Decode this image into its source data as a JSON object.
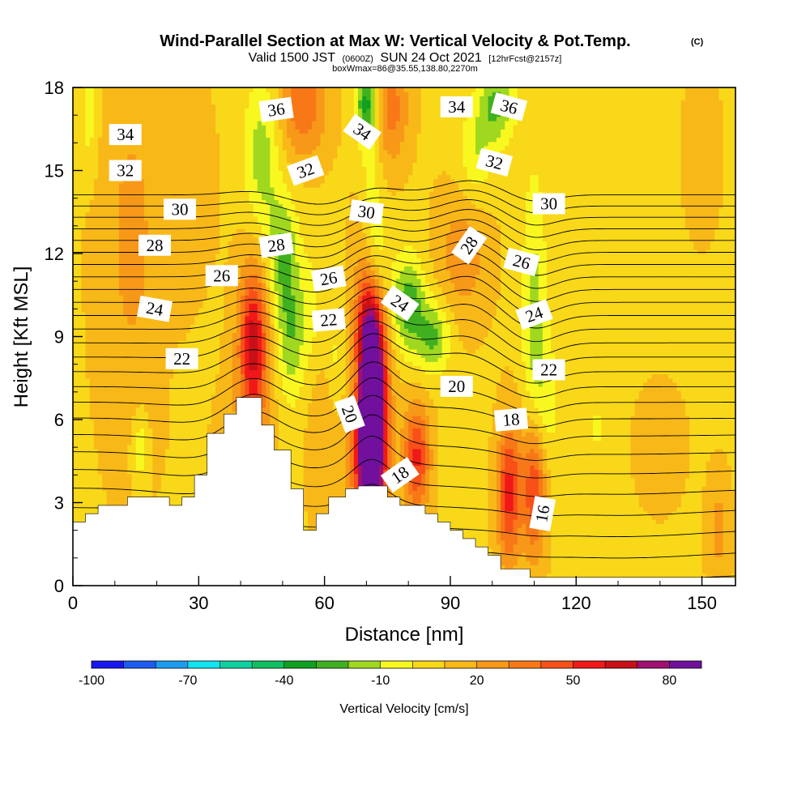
{
  "chart_data": {
    "type": "heatmap",
    "title": "Wind-Parallel Section at Max W: Vertical Velocity & Pot.Temp.",
    "title_mark": "(C)",
    "subtitle_parts": [
      "Valid 1500 JST",
      "(0600Z)",
      "SUN 24 Oct 2021",
      "[12hrFcst@2157z]"
    ],
    "subtitle2": "boxWmax=86@35.55,138.80,2270m",
    "xlabel": "Distance [nm]",
    "ylabel": "Height [Kft MSL]",
    "xlim": [
      0,
      158
    ],
    "ylim": [
      0,
      18
    ],
    "x_ticks": [
      "0",
      "30",
      "60",
      "90",
      "120",
      "150"
    ],
    "x_tick_values": [
      0,
      30,
      60,
      90,
      120,
      150
    ],
    "y_ticks": [
      "0",
      "3",
      "6",
      "9",
      "12",
      "15",
      "18"
    ],
    "y_tick_values": [
      0,
      3,
      6,
      9,
      12,
      15,
      18
    ],
    "colorbar": {
      "label": "Vertical Velocity [cm/s]",
      "range": [
        -100,
        90
      ],
      "tick_labels": [
        "-100",
        "-70",
        "-40",
        "-10",
        "20",
        "50",
        "80"
      ],
      "tick_values": [
        -100,
        -70,
        -40,
        -10,
        20,
        50,
        80
      ],
      "colors": [
        "#1818f0",
        "#1c5cf0",
        "#1c9cf0",
        "#10e4f0",
        "#10d0a0",
        "#10c060",
        "#10a020",
        "#40b020",
        "#a0d820",
        "#f8f820",
        "#f8d818",
        "#f8b818",
        "#f89818",
        "#f87818",
        "#f85018",
        "#f01818",
        "#c81018",
        "#a01070",
        "#70109c"
      ]
    },
    "terrain": [
      [
        0,
        2.3
      ],
      [
        3,
        2.3
      ],
      [
        3,
        2.6
      ],
      [
        6,
        2.6
      ],
      [
        6,
        2.9
      ],
      [
        13,
        2.9
      ],
      [
        13,
        3.2
      ],
      [
        23,
        3.2
      ],
      [
        23,
        2.9
      ],
      [
        26,
        2.9
      ],
      [
        26,
        3.2
      ],
      [
        29,
        3.2
      ],
      [
        29,
        4.0
      ],
      [
        32,
        4.0
      ],
      [
        32,
        5.5
      ],
      [
        36,
        5.5
      ],
      [
        36,
        6.2
      ],
      [
        39,
        6.2
      ],
      [
        39,
        6.8
      ],
      [
        45,
        6.8
      ],
      [
        45,
        5.8
      ],
      [
        48,
        5.8
      ],
      [
        48,
        4.9
      ],
      [
        52,
        4.9
      ],
      [
        52,
        3.5
      ],
      [
        55,
        3.5
      ],
      [
        55,
        2.0
      ],
      [
        58,
        2.0
      ],
      [
        58,
        2.6
      ],
      [
        61,
        2.6
      ],
      [
        61,
        3.2
      ],
      [
        65,
        3.2
      ],
      [
        65,
        3.5
      ],
      [
        68,
        3.5
      ],
      [
        68,
        3.6
      ],
      [
        75,
        3.6
      ],
      [
        75,
        3.2
      ],
      [
        78,
        3.2
      ],
      [
        78,
        2.9
      ],
      [
        84,
        2.9
      ],
      [
        84,
        2.6
      ],
      [
        87,
        2.6
      ],
      [
        87,
        2.3
      ],
      [
        90,
        2.3
      ],
      [
        90,
        2.0
      ],
      [
        93,
        2.0
      ],
      [
        93,
        1.7
      ],
      [
        96,
        1.7
      ],
      [
        96,
        1.4
      ],
      [
        99,
        1.4
      ],
      [
        99,
        1.1
      ],
      [
        102,
        1.1
      ],
      [
        102,
        0.6
      ],
      [
        109,
        0.6
      ],
      [
        109,
        0.3
      ],
      [
        158,
        0.3
      ]
    ],
    "w_field": [
      {
        "x": 71,
        "y": 6.5,
        "w": 86,
        "rx": 2.0,
        "ry": 2.7
      },
      {
        "x": 71,
        "y": 7.5,
        "w": 40,
        "rx": 2.6,
        "ry": 5.2
      },
      {
        "x": 71,
        "y": 5.0,
        "w": 30,
        "rx": 3.2,
        "ry": 3.5
      },
      {
        "x": 43,
        "y": 8.8,
        "w": 42,
        "rx": 2.2,
        "ry": 1.8
      },
      {
        "x": 43,
        "y": 7.5,
        "w": 18,
        "rx": 3.5,
        "ry": 3.2
      },
      {
        "x": 82,
        "y": 4.6,
        "w": 44,
        "rx": 2.2,
        "ry": 1.4
      },
      {
        "x": 104,
        "y": 3.4,
        "w": 46,
        "rx": 2.0,
        "ry": 1.8
      },
      {
        "x": 110,
        "y": 3.6,
        "w": 44,
        "rx": 2.0,
        "ry": 1.8
      },
      {
        "x": 55,
        "y": 17.4,
        "w": 30,
        "rx": 4.0,
        "ry": 1.4
      },
      {
        "x": 76,
        "y": 17.3,
        "w": 26,
        "rx": 3.0,
        "ry": 1.4
      },
      {
        "x": 93,
        "y": 12.0,
        "w": 18,
        "rx": 4.5,
        "ry": 1.8
      },
      {
        "x": 14,
        "y": 12.5,
        "w": 14,
        "rx": 6.0,
        "ry": 5.5
      },
      {
        "x": 28,
        "y": 14.5,
        "w": 10,
        "rx": 4.0,
        "ry": 2.5
      },
      {
        "x": 150,
        "y": 15.6,
        "w": 10,
        "rx": 3.0,
        "ry": 2.0
      },
      {
        "x": 154,
        "y": 2.0,
        "w": 15,
        "rx": 2.0,
        "ry": 1.5
      },
      {
        "x": 140,
        "y": 5.0,
        "w": 10,
        "rx": 4.0,
        "ry": 1.5
      },
      {
        "x": 36,
        "y": 4.5,
        "w": 12,
        "rx": 2.0,
        "ry": 1.5
      },
      {
        "x": 60,
        "y": 5.0,
        "w": 12,
        "rx": 3.0,
        "ry": 2.0
      },
      {
        "x": 45,
        "y": 15.5,
        "w": -24,
        "rx": 3.0,
        "ry": 2.0
      },
      {
        "x": 50,
        "y": 12.0,
        "w": -28,
        "rx": 2.5,
        "ry": 1.5
      },
      {
        "x": 52,
        "y": 9.0,
        "w": -26,
        "rx": 2.5,
        "ry": 1.7
      },
      {
        "x": 57,
        "y": 10.2,
        "w": -10,
        "rx": 2.0,
        "ry": 1.5
      },
      {
        "x": 70,
        "y": 17.5,
        "w": -40,
        "rx": 1.8,
        "ry": 1.0
      },
      {
        "x": 71,
        "y": 15.0,
        "w": -22,
        "rx": 2.0,
        "ry": 2.2
      },
      {
        "x": 72,
        "y": 11.8,
        "w": -34,
        "rx": 2.3,
        "ry": 1.6
      },
      {
        "x": 80,
        "y": 10.2,
        "w": -36,
        "rx": 2.8,
        "ry": 1.2
      },
      {
        "x": 86,
        "y": 9.0,
        "w": -30,
        "rx": 2.8,
        "ry": 0.9
      },
      {
        "x": 101,
        "y": 17.4,
        "w": -30,
        "rx": 3.0,
        "ry": 1.0
      },
      {
        "x": 96,
        "y": 15.5,
        "w": -18,
        "rx": 3.0,
        "ry": 1.3
      },
      {
        "x": 110,
        "y": 10.0,
        "w": -22,
        "rx": 2.0,
        "ry": 3.5
      },
      {
        "x": 113,
        "y": 6.6,
        "w": -14,
        "rx": 2.2,
        "ry": 1.8
      },
      {
        "x": 68,
        "y": 7.4,
        "w": -16,
        "rx": 1.4,
        "ry": 0.8
      },
      {
        "x": 125,
        "y": 5.7,
        "w": -12,
        "rx": 0.8,
        "ry": 0.6
      },
      {
        "x": 16,
        "y": 5.0,
        "w": -18,
        "rx": 1.4,
        "ry": 1.0
      },
      {
        "x": 4,
        "y": 17.0,
        "w": -14,
        "rx": 1.5,
        "ry": 1.5
      },
      {
        "x": 25,
        "y": 6.7,
        "w": -10,
        "rx": 0.7,
        "ry": 0.9
      },
      {
        "x": 63,
        "y": 8.0,
        "w": -12,
        "rx": 1.5,
        "ry": 1.5
      }
    ],
    "theta_base": 14.5,
    "theta_levels": [
      15,
      16,
      17,
      18,
      19,
      20,
      21,
      22,
      23,
      24,
      25,
      26,
      27,
      28,
      29,
      30,
      31,
      32,
      33,
      34,
      35,
      36,
      37,
      38,
      39,
      40
    ],
    "theta_bumps": [
      {
        "x": 43,
        "y": 7.5,
        "a": -1.6,
        "sx": 6,
        "sy": 4
      },
      {
        "x": 71,
        "y": 8.5,
        "a": -2.4,
        "sx": 5,
        "sy": 4
      },
      {
        "x": 83,
        "y": 9.5,
        "a": -1.0,
        "sx": 8,
        "sy": 3
      },
      {
        "x": 95,
        "y": 12.0,
        "a": -1.8,
        "sx": 6,
        "sy": 3
      },
      {
        "x": 110,
        "y": 10.0,
        "a": 1.0,
        "sx": 5,
        "sy": 4
      },
      {
        "x": 60,
        "y": 15.0,
        "a": 1.0,
        "sx": 8,
        "sy": 3
      },
      {
        "x": 30,
        "y": 4.5,
        "a": 0.4,
        "sx": 10,
        "sy": 2
      },
      {
        "x": 130,
        "y": 2.0,
        "a": 0.4,
        "sx": 20,
        "sy": 2
      }
    ],
    "contour_labels": [
      {
        "text": "34",
        "x": 12.5,
        "y": 16.3,
        "rot": 0
      },
      {
        "text": "32",
        "x": 12.5,
        "y": 15.0,
        "rot": 0
      },
      {
        "text": "30",
        "x": 25.5,
        "y": 13.6,
        "rot": 0
      },
      {
        "text": "28",
        "x": 19.5,
        "y": 12.3,
        "rot": 0
      },
      {
        "text": "26",
        "x": 35.5,
        "y": 11.2,
        "rot": 0
      },
      {
        "text": "24",
        "x": 19.5,
        "y": 10.0,
        "rot": 10
      },
      {
        "text": "22",
        "x": 26.0,
        "y": 8.2,
        "rot": 0
      },
      {
        "text": "36",
        "x": 48.5,
        "y": 17.2,
        "rot": -8
      },
      {
        "text": "32",
        "x": 55.5,
        "y": 15.0,
        "rot": -20
      },
      {
        "text": "28",
        "x": 48.5,
        "y": 12.3,
        "rot": -8
      },
      {
        "text": "26",
        "x": 61.0,
        "y": 11.1,
        "rot": -10
      },
      {
        "text": "22",
        "x": 61.0,
        "y": 9.6,
        "rot": -5
      },
      {
        "text": "34",
        "x": 69.0,
        "y": 16.4,
        "rot": 35
      },
      {
        "text": "30",
        "x": 70.0,
        "y": 13.5,
        "rot": 8
      },
      {
        "text": "20",
        "x": 66.0,
        "y": 6.2,
        "rot": 70
      },
      {
        "text": "24",
        "x": 78.0,
        "y": 10.2,
        "rot": 35
      },
      {
        "text": "18",
        "x": 78.0,
        "y": 4.0,
        "rot": -35
      },
      {
        "text": "20",
        "x": 91.5,
        "y": 7.2,
        "rot": 0
      },
      {
        "text": "34",
        "x": 91.5,
        "y": 17.3,
        "rot": 0
      },
      {
        "text": "36",
        "x": 104.0,
        "y": 17.3,
        "rot": 15
      },
      {
        "text": "32",
        "x": 100.5,
        "y": 15.3,
        "rot": 15
      },
      {
        "text": "28",
        "x": 94.5,
        "y": 12.3,
        "rot": -55
      },
      {
        "text": "26",
        "x": 107.0,
        "y": 11.7,
        "rot": 15
      },
      {
        "text": "24",
        "x": 110.0,
        "y": 9.8,
        "rot": -20
      },
      {
        "text": "18",
        "x": 104.5,
        "y": 6.0,
        "rot": -5
      },
      {
        "text": "30",
        "x": 113.5,
        "y": 13.8,
        "rot": 0
      },
      {
        "text": "22",
        "x": 113.5,
        "y": 7.8,
        "rot": 0
      },
      {
        "text": "16",
        "x": 112.0,
        "y": 2.6,
        "rot": -80
      }
    ]
  }
}
